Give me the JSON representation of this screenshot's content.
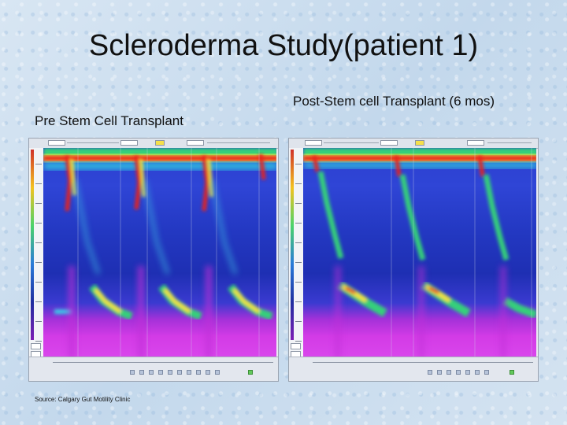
{
  "title": "Scleroderma Study(patient 1)",
  "panels": {
    "pre": {
      "heading": "Pre Stem Cell Transplant"
    },
    "post": {
      "heading": "Post-Stem cell Transplant (6 mos)"
    }
  },
  "source": "Source: Calgary Gut Motility Clinic",
  "colors": {
    "background": "#c9dcee",
    "plot_blue": "#2338c2",
    "plot_magenta": "#d946ec",
    "pressure_red": "#e8201c",
    "pressure_yellow": "#f5e23b",
    "pressure_green": "#36d07a"
  }
}
